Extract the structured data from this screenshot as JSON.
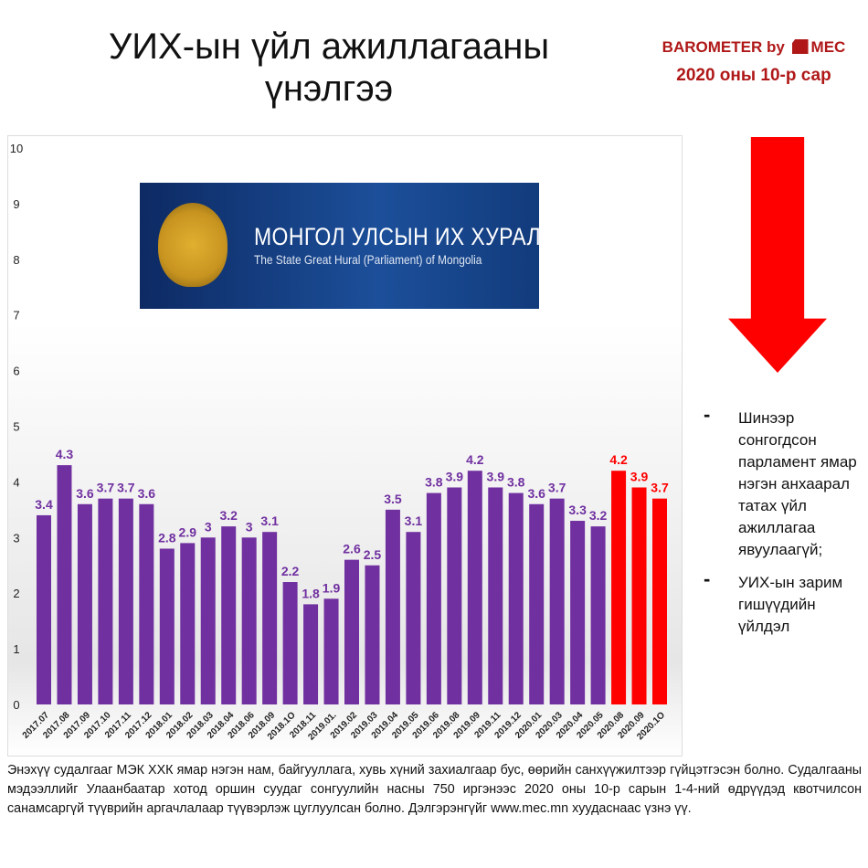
{
  "title": "УИХ-ын үйл ажиллагааны үнэлгээ",
  "brand": {
    "line1_left": "BAROMETER by",
    "line1_right": "MEC",
    "line2": "2020 оны 10-р сар"
  },
  "logo": {
    "title": "МОНГОЛ УЛСЫН ИХ ХУРАЛ",
    "subtitle": "The State Great Hural (Parliament) of Mongolia"
  },
  "bullets": [
    {
      "dash": "-",
      "text": "Шинээр сонгогдсон парламент ямар нэгэн анхаарал татах үйл ажиллагаа явуулаагүй;"
    },
    {
      "dash": "-",
      "text": "УИХ-ын зарим гишүүдийн үйлдэл"
    }
  ],
  "footer": "Энэхүү судалгааг МЭК ХХК ямар нэгэн нам, байгууллага, хувь хүний захиалгаар бус, өөрийн санхүүжилтээр гүйцэтгэсэн болно. Судалгааны мэдээллийг Улаанбаатар хотод оршин суудаг сонгуулийн насны 750 иргэнээс 2020 оны 10-р сарын 1-4-ний өдрүүдэд квотчилсон санамсаргүй түүврийн аргачлалаар түүвэрлэж цуглуулсан болно. Дэлгэрэнгүйг www.mec.mn хуудаснаас үзнэ үү.",
  "colors": {
    "purple": "#7030a0",
    "red": "#ff0000"
  },
  "chart_data": {
    "type": "bar",
    "title": "",
    "xlabel": "",
    "ylabel": "",
    "ylim": [
      0,
      10
    ],
    "yticks": [
      "0",
      "1",
      "2",
      "3",
      "4",
      "5",
      "6",
      "7",
      "8",
      "9",
      "10"
    ],
    "categories": [
      "2017.07",
      "2017.08",
      "2017.09",
      "2017.10",
      "2017.11",
      "2017.12",
      "2018.01",
      "2018.02",
      "2018.03",
      "2018.04",
      "2018.06",
      "2018.09",
      "2018.1O",
      "2018.11",
      "2019.01.",
      "2019.02",
      "2019.03",
      "2019.04",
      "2019.05",
      "2019.06",
      "2019.08",
      "2019.09",
      "2019.11",
      "2019.12",
      "2020.01",
      "2020.03",
      "2020.04",
      "2020.05",
      "2020.08",
      "2020.09",
      "2020.1O"
    ],
    "values": [
      3.4,
      4.3,
      3.6,
      3.7,
      3.7,
      3.6,
      2.8,
      2.9,
      3,
      3.2,
      3,
      3.1,
      2.2,
      1.8,
      1.9,
      2.6,
      2.5,
      3.5,
      3.1,
      3.8,
      3.9,
      4.2,
      3.9,
      3.8,
      3.6,
      3.7,
      3.3,
      3.2,
      4.2,
      3.9,
      3.7
    ],
    "highlight_from_index": 28,
    "grid": false,
    "legend": "none"
  }
}
